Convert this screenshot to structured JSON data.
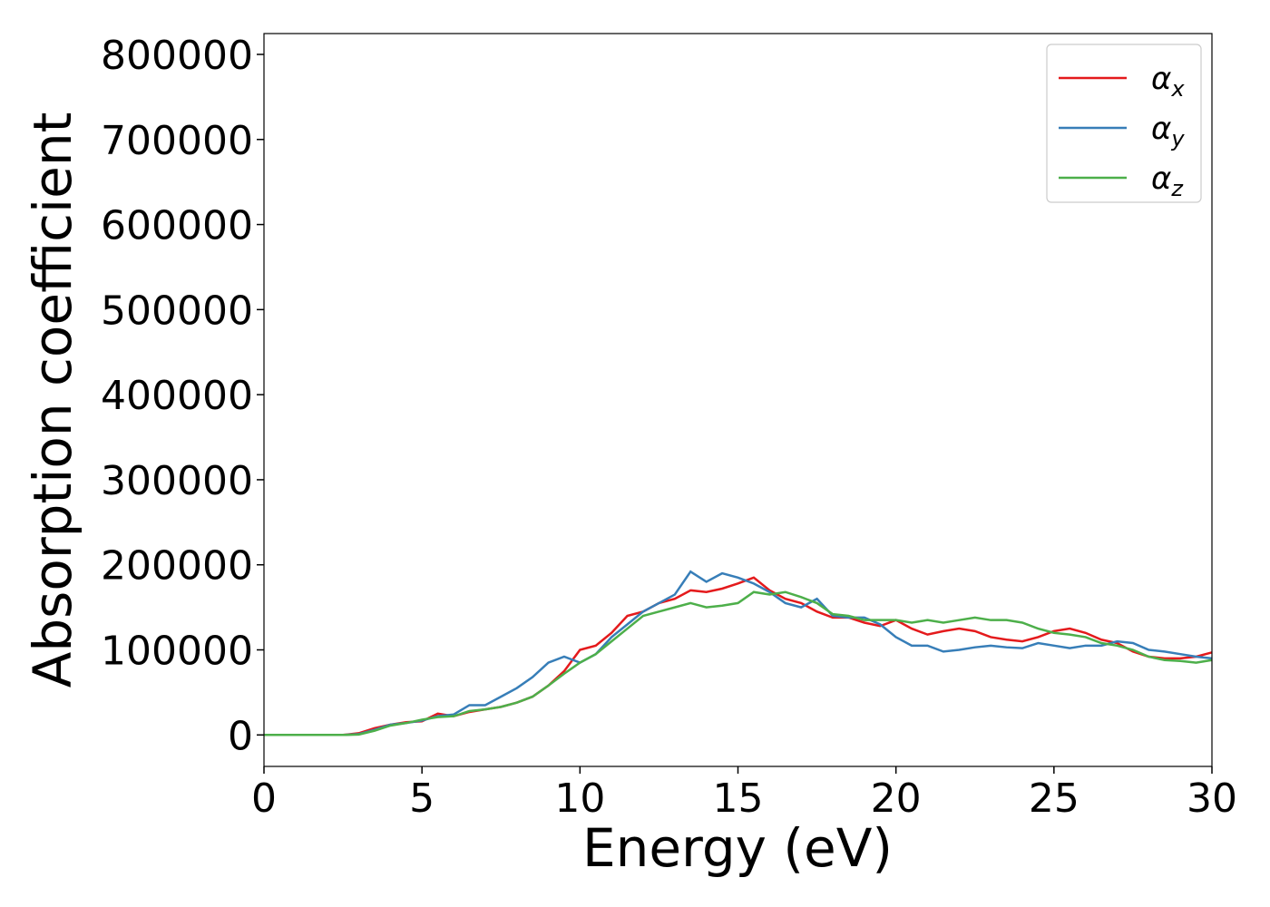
{
  "chart_data": {
    "type": "line",
    "x_label": "Energy (eV)",
    "y_label": "Absorption coefficient",
    "x": [
      0,
      0.5,
      1,
      1.5,
      2,
      2.5,
      3,
      3.5,
      4,
      4.5,
      5,
      5.5,
      6,
      6.5,
      7,
      7.5,
      8,
      8.5,
      9,
      9.5,
      10,
      10.5,
      11,
      11.5,
      12,
      12.5,
      13,
      13.5,
      14,
      14.5,
      15,
      15.5,
      16,
      16.5,
      17,
      17.5,
      18,
      18.5,
      19,
      19.5,
      20,
      20.5,
      21,
      21.5,
      22,
      22.5,
      23,
      23.5,
      24,
      24.5,
      25,
      25.5,
      26,
      26.5,
      27,
      27.5,
      28,
      28.5,
      29,
      29.5,
      30
    ],
    "series": [
      {
        "name": "αx",
        "color": "#e41a1c",
        "values": [
          0,
          0,
          0,
          0,
          0,
          0,
          2000,
          8000,
          12000,
          15000,
          16000,
          25000,
          22000,
          27000,
          30000,
          33000,
          38000,
          45000,
          58000,
          75000,
          100000,
          105000,
          120000,
          140000,
          145000,
          155000,
          160000,
          170000,
          168000,
          172000,
          178000,
          185000,
          170000,
          160000,
          155000,
          145000,
          138000,
          138000,
          132000,
          128000,
          135000,
          125000,
          118000,
          122000,
          125000,
          122000,
          115000,
          112000,
          110000,
          115000,
          122000,
          125000,
          120000,
          112000,
          108000,
          98000,
          92000,
          90000,
          90000,
          92000,
          97000
        ]
      },
      {
        "name": "αy",
        "color": "#377eb8",
        "values": [
          0,
          0,
          0,
          0,
          0,
          0,
          1000,
          6000,
          12000,
          14000,
          17000,
          22000,
          24000,
          35000,
          35000,
          45000,
          55000,
          68000,
          85000,
          92000,
          85000,
          95000,
          115000,
          130000,
          145000,
          155000,
          165000,
          192000,
          180000,
          190000,
          185000,
          178000,
          168000,
          155000,
          150000,
          160000,
          140000,
          138000,
          138000,
          130000,
          115000,
          105000,
          105000,
          98000,
          100000,
          103000,
          105000,
          103000,
          102000,
          108000,
          105000,
          102000,
          105000,
          105000,
          110000,
          108000,
          100000,
          98000,
          95000,
          92000,
          90000
        ]
      },
      {
        "name": "αz",
        "color": "#4daf4a",
        "values": [
          0,
          0,
          0,
          0,
          0,
          0,
          500,
          5000,
          11000,
          14000,
          18000,
          21000,
          22000,
          28000,
          30000,
          33000,
          38000,
          45000,
          58000,
          72000,
          85000,
          95000,
          110000,
          125000,
          140000,
          145000,
          150000,
          155000,
          150000,
          152000,
          155000,
          168000,
          165000,
          168000,
          162000,
          155000,
          142000,
          140000,
          135000,
          135000,
          135000,
          132000,
          135000,
          132000,
          135000,
          138000,
          135000,
          135000,
          132000,
          125000,
          120000,
          118000,
          115000,
          108000,
          105000,
          100000,
          92000,
          88000,
          87000,
          85000,
          88000
        ]
      }
    ],
    "xlim": [
      0,
      30
    ],
    "xticks": [
      0,
      5,
      10,
      15,
      20,
      25,
      30
    ],
    "ylim": [
      -37000,
      824500
    ],
    "yticks": [
      0,
      100000,
      200000,
      300000,
      400000,
      500000,
      600000,
      700000,
      800000
    ],
    "legend": "upper right",
    "grid": false
  }
}
